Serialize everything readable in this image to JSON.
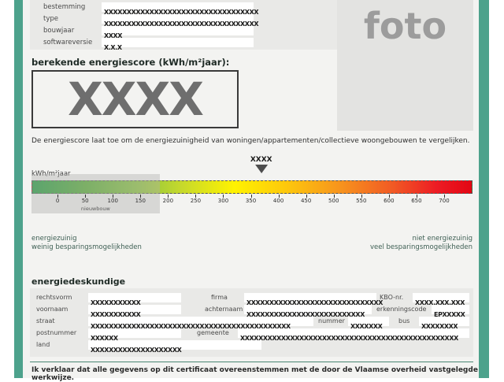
{
  "photo": {
    "placeholder": "foto"
  },
  "header_fields": {
    "bestemming": {
      "label": "bestemming",
      "value": "XXXXXXXXXXXXXXXXXXXXXXXXXXXXXXXXXX"
    },
    "type": {
      "label": "type",
      "value": "XXXXXXXXXXXXXXXXXXXXXXXXXXXXXXXXXX"
    },
    "bouwjaar": {
      "label": "bouwjaar",
      "value": "XXXX"
    },
    "softwareversie": {
      "label": "softwareversie",
      "value": "X.X.X"
    }
  },
  "energiescore": {
    "title": "berekende energiescore (kWh/m²jaar):",
    "value": "XXXX",
    "description": "De energiescore laat toe om de energiezuinigheid van woningen/appartementen/collectieve woongebouwen te vergelijken."
  },
  "chart_data": {
    "type": "gauge",
    "unit_label": "kWh/m²jaar",
    "ticks": [
      0,
      50,
      100,
      150,
      200,
      250,
      300,
      350,
      400,
      450,
      500,
      550,
      600,
      650,
      700
    ],
    "tick_start_pct": 5.9,
    "tick_step_pct": 6.25,
    "axis_range": [
      0,
      700
    ],
    "marker": {
      "label": "XXXX",
      "position_pct": 52
    },
    "reference_zone": {
      "label": "nieuwbouw",
      "from_pct": 0,
      "to_pct": 29
    },
    "gradient_colors": [
      "#1f9c3f",
      "#8dc63f",
      "#fff200",
      "#f7941d",
      "#e30613"
    ],
    "left_caption_line1": "energiezuinig",
    "left_caption_line2": "weinig besparingsmogelijkheden",
    "right_caption_line1": "niet energiezuinig",
    "right_caption_line2": "veel besparingsmogelijkheden"
  },
  "energiedeskundige": {
    "title": "energiedeskundige",
    "rechtsvorm": {
      "label": "rechtsvorm",
      "value": "XXXXXXXXXXX"
    },
    "firma": {
      "label": "firma",
      "value": "XXXXXXXXXXXXXXXXXXXXXXXXXXXXXX"
    },
    "kbo": {
      "label": "KBO-nr.",
      "value": "XXXX.XXX.XXX"
    },
    "voornaam": {
      "label": "voornaam",
      "value": "XXXXXXXXXXX"
    },
    "achternaam": {
      "label": "achternaam",
      "value": "XXXXXXXXXXXXXXXXXXXXXXXXXX"
    },
    "erkenningscode": {
      "label": "erkenningscode",
      "value": "EPXXXXX"
    },
    "straat": {
      "label": "straat",
      "value": "XXXXXXXXXXXXXXXXXXXXXXXXXXXXXXXXXXXXXXXXXXXX"
    },
    "nummer": {
      "label": "nummer",
      "value": "XXXXXXX"
    },
    "bus": {
      "label": "bus",
      "value": "XXXXXXXX"
    },
    "postnummer": {
      "label": "postnummer",
      "value": "XXXXXX"
    },
    "gemeente": {
      "label": "gemeente",
      "value": "XXXXXXXXXXXXXXXXXXXXXXXXXXXXXXXXXXXXXXXXXXXXXXXX"
    },
    "land": {
      "label": "land",
      "value": "XXXXXXXXXXXXXXXXXXXX"
    }
  },
  "declaration": "Ik verklaar dat alle gegevens op dit certificaat overeenstemmen met de door de Vlaamse overheid vastgelegde werkwijze.",
  "colors": {
    "accent_teal": "#4da28c",
    "panel_grey": "#e9e9e7",
    "score_grey": "#6e6e6e"
  }
}
